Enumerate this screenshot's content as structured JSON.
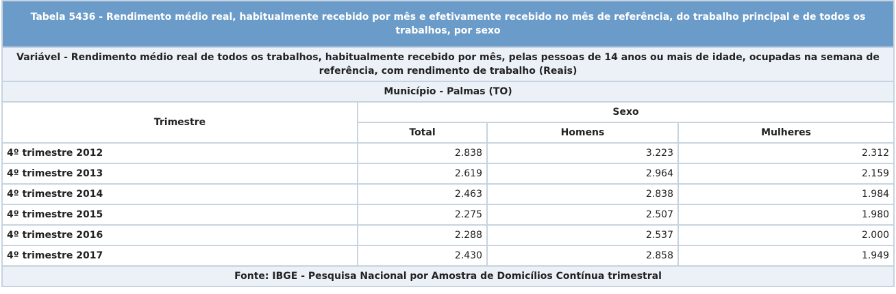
{
  "title": "Tabela 5436 - Rendimento médio real, habitualmente recebido por mês e efetivamente recebido no mês de referência, do trabalho principal e de todos os trabalhos, por sexo",
  "variable": "Variável - Rendimento médio real de todos os trabalhos, habitualmente recebido por mês, pelas pessoas de 14 anos ou mais de idade, ocupadas na semana de referência, com rendimento de trabalho  (Reais)",
  "municipality": "Município - Palmas  (TO)",
  "headers": {
    "trimestre": "Trimestre",
    "group": "Sexo",
    "columns": [
      "Total",
      "Homens",
      "Mulheres"
    ]
  },
  "rows": [
    {
      "label": "4º trimestre 2012",
      "values": [
        "2.838",
        "3.223",
        "2.312"
      ]
    },
    {
      "label": "4º trimestre 2013",
      "values": [
        "2.619",
        "2.964",
        "2.159"
      ]
    },
    {
      "label": "4º trimestre 2014",
      "values": [
        "2.463",
        "2.838",
        "1.984"
      ]
    },
    {
      "label": "4º trimestre 2015",
      "values": [
        "2.275",
        "2.507",
        "1.980"
      ]
    },
    {
      "label": "4º trimestre 2016",
      "values": [
        "2.288",
        "2.537",
        "2.000"
      ]
    },
    {
      "label": "4º trimestre 2017",
      "values": [
        "2.430",
        "2.858",
        "1.949"
      ]
    }
  ],
  "source": "Fonte: IBGE - Pesquisa Nacional por Amostra de Domicílios Contínua trimestral",
  "colors": {
    "title_bg": "#6b9cc9",
    "band_bg": "#ecf1f7",
    "border": "#c7d3e0"
  }
}
